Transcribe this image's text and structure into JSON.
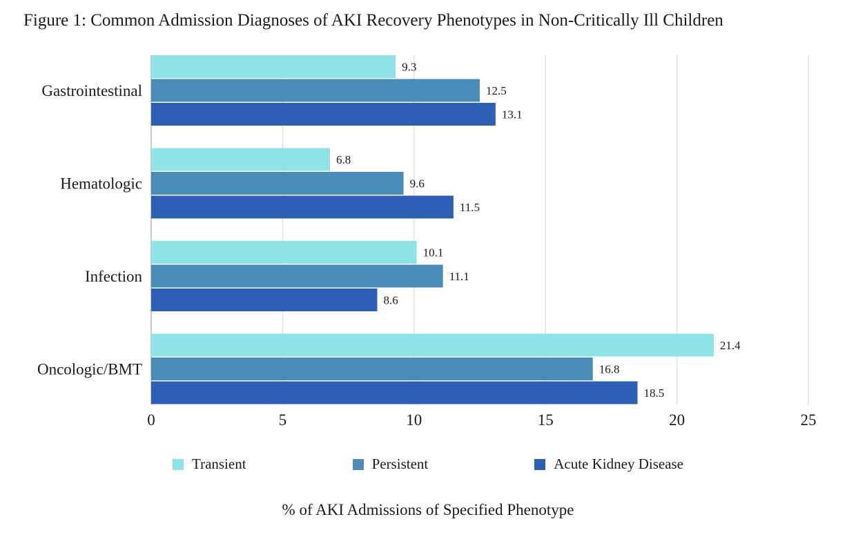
{
  "chart_data": {
    "type": "bar",
    "orientation": "horizontal",
    "title": "Figure 1: Common Admission Diagnoses of AKI Recovery Phenotypes in Non-Critically Ill Children",
    "xlabel": "% of AKI Admissions of Specified Phenotype",
    "ylabel": "",
    "categories": [
      "Gastrointestinal",
      "Hematologic",
      "Infection",
      "Oncologic/BMT"
    ],
    "series": [
      {
        "name": "Transient",
        "color": "#8ee3e6",
        "values": [
          9.3,
          6.8,
          10.1,
          21.4
        ]
      },
      {
        "name": "Persistent",
        "color": "#4a8cb8",
        "values": [
          12.5,
          9.6,
          11.1,
          16.8
        ]
      },
      {
        "name": "Acute Kidney Disease",
        "color": "#2c5fb5",
        "values": [
          13.1,
          11.5,
          8.6,
          18.5
        ]
      }
    ],
    "xlim": [
      0,
      25
    ],
    "xticks": [
      "0",
      "5",
      "10",
      "15",
      "20",
      "25"
    ],
    "grid": "vertical",
    "legend_position": "bottom"
  }
}
